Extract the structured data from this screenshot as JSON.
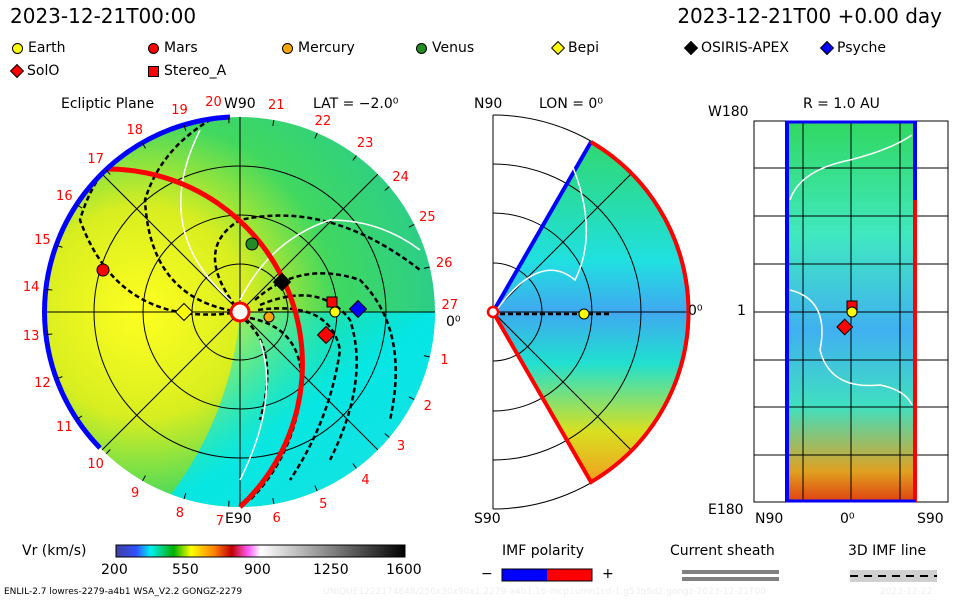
{
  "header": {
    "left_time": "2023-12-21T00:00",
    "right_time": "2023-12-21T00 +0.00 day"
  },
  "legend": [
    {
      "name": "Earth",
      "shape": "circle",
      "color": "#ffff00"
    },
    {
      "name": "Mars",
      "shape": "circle",
      "color": "#ff0000"
    },
    {
      "name": "Mercury",
      "shape": "circle",
      "color": "#ffa500"
    },
    {
      "name": "Venus",
      "shape": "circle",
      "color": "#228b22"
    },
    {
      "name": "Bepi",
      "shape": "diamond",
      "color": "#ffff00"
    },
    {
      "name": "OSIRIS-APEX",
      "shape": "diamond",
      "color": "#000000"
    },
    {
      "name": "Psyche",
      "shape": "diamond",
      "color": "#0000ff"
    },
    {
      "name": "SolO",
      "shape": "diamond",
      "color": "#ff0000"
    },
    {
      "name": "Stereo_A",
      "shape": "square",
      "color": "#ff0000"
    }
  ],
  "ecliptic": {
    "title": "Ecliptic Plane",
    "top": "W90",
    "bottom": "E90",
    "right": "0⁰",
    "lat": "LAT = −2.0⁰",
    "ticks": [
      "1",
      "2",
      "3",
      "4",
      "5",
      "6",
      "7",
      "8",
      "9",
      "10",
      "11",
      "12",
      "13",
      "14",
      "15",
      "16",
      "17",
      "18",
      "19",
      "20",
      "21",
      "22",
      "23",
      "24",
      "25",
      "26",
      "27"
    ]
  },
  "meridional": {
    "top": "N90",
    "bottom": "S90",
    "right": "0⁰",
    "lon": "LON = 0⁰"
  },
  "sphere": {
    "title": "R = 1.0 AU",
    "top": "W180",
    "bottom": "E180",
    "mid": "1",
    "x_left": "N90",
    "x_mid": "0⁰",
    "x_right": "S90"
  },
  "colorbar": {
    "label": "Vr (km/s)",
    "ticks": [
      "200",
      "550",
      "900",
      "1250",
      "1600"
    ]
  },
  "polarity": {
    "title": "IMF polarity",
    "minus": "−",
    "plus": "+",
    "neg_color": "#0000ff",
    "pos_color": "#ff0000"
  },
  "sheath": {
    "title": "Current sheath"
  },
  "imfline": {
    "title": "3D IMF line"
  },
  "footer": {
    "model": "ENLIL-2.7 lowres-2279-a4b1 WSA_V2.2 GONGZ-2279",
    "run_id": "UNIQUE1222174848/256x30x90x1.2279-a4b1.16-mcp1umn1cd-1.g53q5d2.gongz-2023-12-21T00",
    "date": "2023-12-22"
  }
}
